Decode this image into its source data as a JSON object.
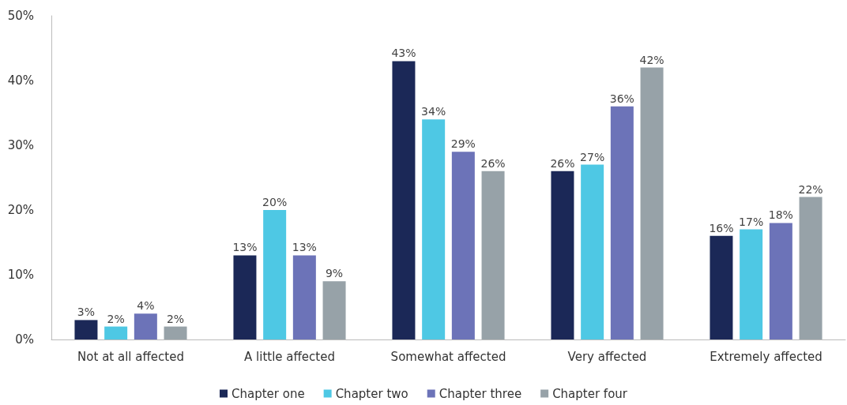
{
  "chart_data": {
    "type": "bar",
    "categories": [
      "Not at all affected",
      "A little affected",
      "Somewhat affected",
      "Very affected",
      "Extremely affected"
    ],
    "series": [
      {
        "name": "Chapter one",
        "color": "#1b2857",
        "values": [
          3,
          13,
          43,
          26,
          16
        ],
        "value_labels": [
          "3%",
          "13%",
          "43%",
          "26%",
          "16%"
        ]
      },
      {
        "name": "Chapter two",
        "color": "#4ec8e4",
        "values": [
          2,
          20,
          34,
          27,
          17
        ],
        "value_labels": [
          "2%",
          "20%",
          "34%",
          "27%",
          "17%"
        ]
      },
      {
        "name": "Chapter three",
        "color": "#6c73b8",
        "values": [
          4,
          13,
          29,
          36,
          18
        ],
        "value_labels": [
          "4%",
          "13%",
          "29%",
          "36%",
          "18%"
        ]
      },
      {
        "name": "Chapter four",
        "color": "#97a2a8",
        "values": [
          2,
          9,
          26,
          42,
          22
        ],
        "value_labels": [
          "2%",
          "9%",
          "26%",
          "42%",
          "22%"
        ]
      }
    ],
    "ylim": [
      0,
      50
    ],
    "yticks": [
      {
        "value": 0,
        "label": "0%"
      },
      {
        "value": 10,
        "label": "10%"
      },
      {
        "value": 20,
        "label": "20%"
      },
      {
        "value": 30,
        "label": "30%"
      },
      {
        "value": 40,
        "label": "40%"
      },
      {
        "value": 50,
        "label": "50%"
      }
    ],
    "grid": false,
    "legend": "bottom"
  }
}
